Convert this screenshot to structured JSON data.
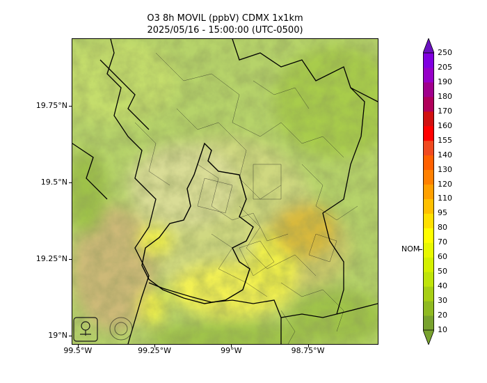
{
  "title": {
    "line1": "O3 8h MOVIL (ppbV) CDMX 1x1km",
    "line2": "2025/05/16 - 15:00:00 (UTC-0500)"
  },
  "axes": {
    "lat_ticks": [
      "19.75°N",
      "19.5°N",
      "19.25°N",
      "19°N"
    ],
    "lon_ticks": [
      "99.5°W",
      "99.25°W",
      "99°W",
      "98.75°W"
    ],
    "lat_values": [
      19.75,
      19.5,
      19.25,
      19.0
    ],
    "lon_values": [
      -99.5,
      -99.25,
      -99.0,
      -98.75
    ],
    "lat_range": [
      18.97,
      19.97
    ],
    "lon_range": [
      -99.52,
      -98.52
    ]
  },
  "colorbar": {
    "levels": [
      10,
      20,
      30,
      40,
      50,
      60,
      70,
      80,
      95,
      110,
      120,
      130,
      140,
      155,
      160,
      170,
      180,
      190,
      205,
      250
    ],
    "labels": [
      "10",
      "20",
      "30",
      "40",
      "50",
      "60",
      "70",
      "80",
      "95",
      "110",
      "120",
      "130",
      "140",
      "155",
      "160",
      "170",
      "180",
      "190",
      "205",
      "250"
    ],
    "colors": [
      "#78a22e",
      "#8fba22",
      "#a7cf14",
      "#bfe40a",
      "#d4f000",
      "#e8f800",
      "#fffe00",
      "#ffe000",
      "#ffc000",
      "#ffa000",
      "#ff8000",
      "#ff6000",
      "#f04a20",
      "#ff0000",
      "#d01010",
      "#b0005a",
      "#a0008c",
      "#9600c8",
      "#8000e0",
      "#6a10c0"
    ],
    "nom_label": "NOM",
    "nom_value": 70
  },
  "logos": {
    "left": "SEDEMA",
    "right": "CIUDAD DE MÉXICO"
  },
  "map_colors": {
    "base": "#b6d36a",
    "low": "#9fc34a",
    "mid": "#d6df7e",
    "high": "#f0ef4a",
    "peak": "#d9b53a"
  }
}
